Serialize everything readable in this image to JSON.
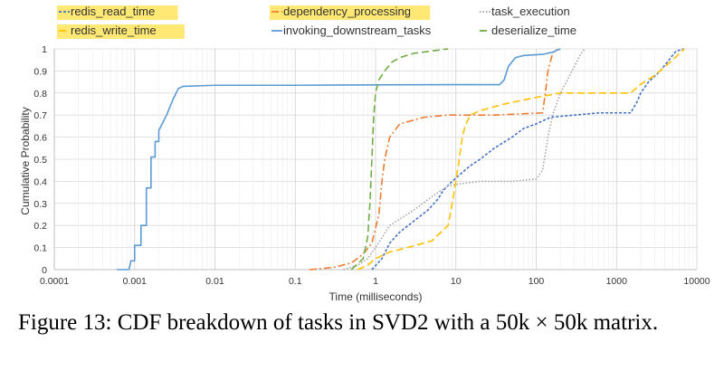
{
  "chart_data": {
    "type": "line",
    "title": "",
    "xlabel": "Time (milliseconds)",
    "ylabel": "Cumulative Probability",
    "x_scale": "log",
    "xlim": [
      0.0001,
      10000
    ],
    "ylim": [
      0,
      1
    ],
    "x_ticks": [
      "0.0001",
      "0.001",
      "0.01",
      "0.1",
      "1",
      "10",
      "100",
      "1000",
      "10000"
    ],
    "y_ticks": [
      "0",
      "0.1",
      "0.2",
      "0.3",
      "0.4",
      "0.5",
      "0.6",
      "0.7",
      "0.8",
      "0.9",
      "1"
    ],
    "grid": true,
    "legend_position": "top",
    "series": [
      {
        "name": "redis_read_time",
        "color": "#4472c4",
        "dash": "short-dash",
        "highlighted": true,
        "points": [
          [
            0.9,
            0
          ],
          [
            1.2,
            0.05
          ],
          [
            1.5,
            0.12
          ],
          [
            2,
            0.17
          ],
          [
            3,
            0.22
          ],
          [
            4.5,
            0.27
          ],
          [
            6,
            0.32
          ],
          [
            7,
            0.36
          ],
          [
            9,
            0.4
          ],
          [
            12,
            0.44
          ],
          [
            15,
            0.47
          ],
          [
            20,
            0.5
          ],
          [
            30,
            0.55
          ],
          [
            50,
            0.6
          ],
          [
            70,
            0.64
          ],
          [
            100,
            0.66
          ],
          [
            150,
            0.69
          ],
          [
            300,
            0.7
          ],
          [
            600,
            0.71
          ],
          [
            1500,
            0.71
          ],
          [
            1800,
            0.76
          ],
          [
            2000,
            0.8
          ],
          [
            2500,
            0.85
          ],
          [
            3500,
            0.9
          ],
          [
            4500,
            0.95
          ],
          [
            5500,
            0.99
          ],
          [
            7000,
            1
          ]
        ]
      },
      {
        "name": "redis_write_time",
        "color": "#ffc000",
        "dash": "long-dash",
        "highlighted": true,
        "points": [
          [
            0.6,
            0
          ],
          [
            0.8,
            0.02
          ],
          [
            1,
            0.05
          ],
          [
            1.5,
            0.08
          ],
          [
            2.5,
            0.1
          ],
          [
            5,
            0.13
          ],
          [
            8,
            0.2
          ],
          [
            9,
            0.3
          ],
          [
            10,
            0.4
          ],
          [
            11,
            0.5
          ],
          [
            12,
            0.6
          ],
          [
            13,
            0.65
          ],
          [
            15,
            0.7
          ],
          [
            20,
            0.72
          ],
          [
            40,
            0.75
          ],
          [
            100,
            0.78
          ],
          [
            200,
            0.8
          ],
          [
            500,
            0.8
          ],
          [
            1500,
            0.8
          ],
          [
            2000,
            0.84
          ],
          [
            3000,
            0.88
          ],
          [
            5000,
            0.95
          ],
          [
            7000,
            1
          ]
        ]
      },
      {
        "name": "dependency_processing",
        "color": "#ed7d31",
        "dash": "dash-dot",
        "highlighted": true,
        "points": [
          [
            0.15,
            0
          ],
          [
            0.3,
            0.01
          ],
          [
            0.5,
            0.03
          ],
          [
            0.7,
            0.07
          ],
          [
            0.9,
            0.12
          ],
          [
            1.1,
            0.25
          ],
          [
            1.2,
            0.4
          ],
          [
            1.3,
            0.5
          ],
          [
            1.5,
            0.6
          ],
          [
            2,
            0.66
          ],
          [
            4,
            0.69
          ],
          [
            8,
            0.7
          ],
          [
            30,
            0.7
          ],
          [
            120,
            0.71
          ],
          [
            130,
            0.8
          ],
          [
            140,
            0.9
          ],
          [
            160,
            0.98
          ],
          [
            180,
            1
          ]
        ]
      },
      {
        "name": "invoking_downstream_tasks",
        "color": "#5b9bd5",
        "dash": "solid",
        "highlighted": false,
        "points": [
          [
            0.0006,
            0
          ],
          [
            0.00085,
            0
          ],
          [
            0.0009,
            0.04
          ],
          [
            0.001,
            0.04
          ],
          [
            0.001,
            0.11
          ],
          [
            0.0012,
            0.11
          ],
          [
            0.0012,
            0.2
          ],
          [
            0.0014,
            0.2
          ],
          [
            0.0014,
            0.37
          ],
          [
            0.0016,
            0.37
          ],
          [
            0.0016,
            0.51
          ],
          [
            0.0018,
            0.51
          ],
          [
            0.0018,
            0.58
          ],
          [
            0.002,
            0.58
          ],
          [
            0.002,
            0.63
          ],
          [
            0.0022,
            0.66
          ],
          [
            0.0025,
            0.7
          ],
          [
            0.003,
            0.77
          ],
          [
            0.0035,
            0.82
          ],
          [
            0.004,
            0.83
          ],
          [
            0.01,
            0.835
          ],
          [
            0.1,
            0.835
          ],
          [
            1,
            0.837
          ],
          [
            10,
            0.838
          ],
          [
            35,
            0.838
          ],
          [
            40,
            0.86
          ],
          [
            45,
            0.92
          ],
          [
            55,
            0.96
          ],
          [
            70,
            0.97
          ],
          [
            120,
            0.975
          ],
          [
            160,
            0.985
          ],
          [
            200,
            1
          ]
        ]
      },
      {
        "name": "task_execution",
        "color": "#a5a5a5",
        "dash": "dotted",
        "highlighted": false,
        "points": [
          [
            0.4,
            0
          ],
          [
            0.6,
            0.02
          ],
          [
            0.8,
            0.05
          ],
          [
            1,
            0.1
          ],
          [
            1.5,
            0.2
          ],
          [
            3,
            0.27
          ],
          [
            5,
            0.33
          ],
          [
            8,
            0.38
          ],
          [
            12,
            0.39
          ],
          [
            20,
            0.4
          ],
          [
            50,
            0.4
          ],
          [
            100,
            0.41
          ],
          [
            120,
            0.45
          ],
          [
            140,
            0.6
          ],
          [
            160,
            0.7
          ],
          [
            200,
            0.8
          ],
          [
            280,
            0.9
          ],
          [
            350,
            0.97
          ],
          [
            400,
            1
          ]
        ]
      },
      {
        "name": "deserialize_time",
        "color": "#70ad47",
        "dash": "long-dash",
        "highlighted": false,
        "points": [
          [
            0.5,
            0
          ],
          [
            0.7,
            0.05
          ],
          [
            0.8,
            0.15
          ],
          [
            0.85,
            0.3
          ],
          [
            0.9,
            0.5
          ],
          [
            0.95,
            0.7
          ],
          [
            1.0,
            0.8
          ],
          [
            1.1,
            0.86
          ],
          [
            1.3,
            0.9
          ],
          [
            1.6,
            0.94
          ],
          [
            2,
            0.96
          ],
          [
            3,
            0.98
          ],
          [
            5,
            0.99
          ],
          [
            8,
            1
          ]
        ]
      }
    ]
  },
  "caption": {
    "line1": "Figure 13: CDF breakdown of tasks in SVD2 with a 50k × 50k matrix."
  }
}
